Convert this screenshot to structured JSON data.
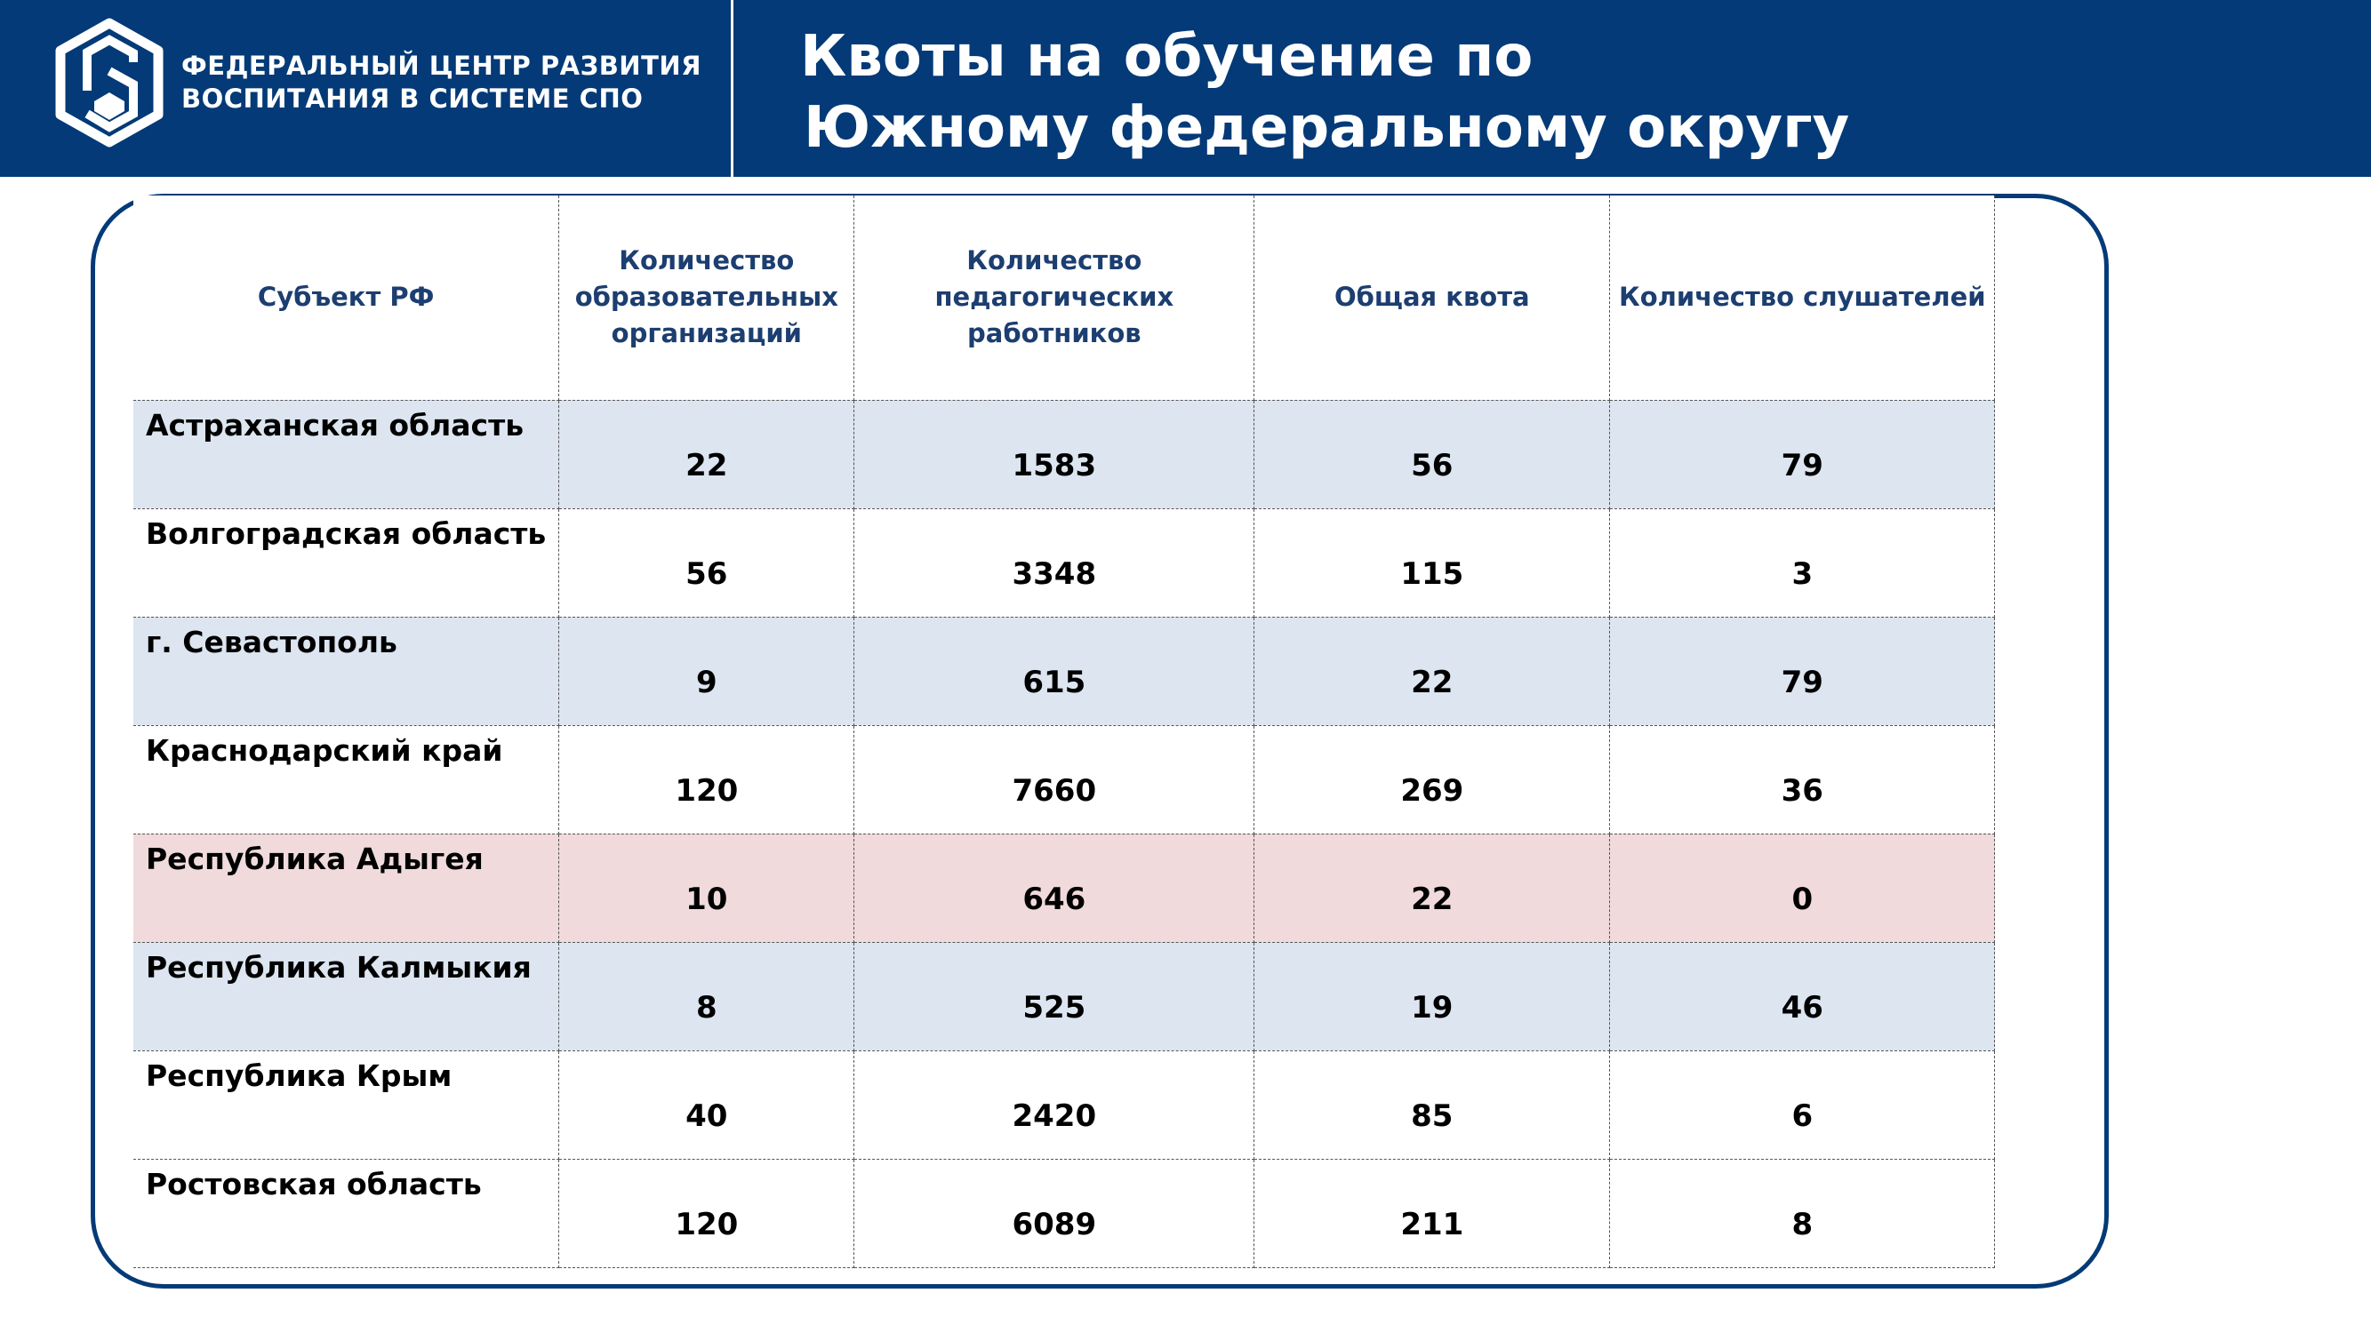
{
  "header": {
    "org_line1": "ФЕДЕРАЛЬНЫЙ ЦЕНТР РАЗВИТИЯ",
    "org_line2": "ВОСПИТАНИЯ В СИСТЕМЕ СПО",
    "title_line1": "Квоты на обучение по",
    "title_line2": "Южному федеральному округу",
    "logo_icon": "hexagon-spo-logo-icon"
  },
  "colors": {
    "brand": "#033a77",
    "row_blue": "#dce5f0",
    "row_pink": "#f0dadb",
    "header_text": "#1c3e70"
  },
  "table": {
    "columns": [
      "Субъект РФ",
      "Количество образовательных организаций",
      "Количество педагогических работников",
      "Общая квота",
      "Количество слушателей"
    ],
    "rows": [
      {
        "region": "Астраханская область",
        "orgs": "22",
        "teachers": "1583",
        "quota": "56",
        "listeners": "79",
        "highlight": "blue"
      },
      {
        "region": "Волгоградская область",
        "orgs": "56",
        "teachers": "3348",
        "quota": "115",
        "listeners": "3",
        "highlight": "white"
      },
      {
        "region": "г. Севастополь",
        "orgs": "9",
        "teachers": "615",
        "quota": "22",
        "listeners": "79",
        "highlight": "blue"
      },
      {
        "region": "Краснодарский край",
        "orgs": "120",
        "teachers": "7660",
        "quota": "269",
        "listeners": "36",
        "highlight": "white"
      },
      {
        "region": "Республика Адыгея",
        "orgs": "10",
        "teachers": "646",
        "quota": "22",
        "listeners": "0",
        "highlight": "pink"
      },
      {
        "region": "Республика Калмыкия",
        "orgs": "8",
        "teachers": "525",
        "quota": "19",
        "listeners": "46",
        "highlight": "blue"
      },
      {
        "region": "Республика Крым",
        "orgs": "40",
        "teachers": "2420",
        "quota": "85",
        "listeners": "6",
        "highlight": "white"
      },
      {
        "region": "Ростовская область",
        "orgs": "120",
        "teachers": "6089",
        "quota": "211",
        "listeners": "8",
        "highlight": "white"
      }
    ]
  }
}
